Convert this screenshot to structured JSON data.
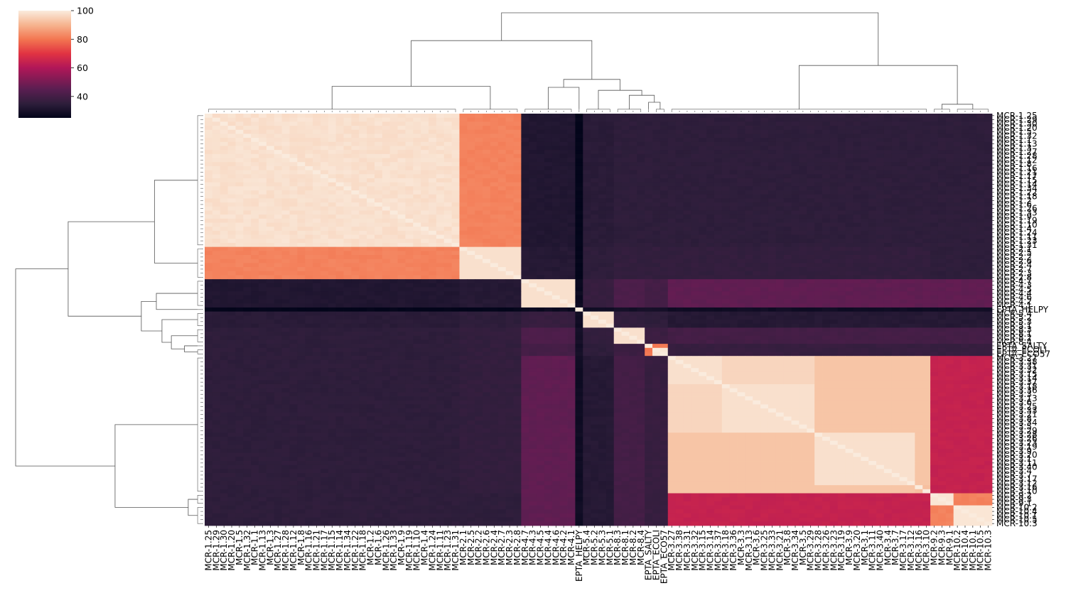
{
  "chart_data": {
    "type": "heatmap",
    "title": "",
    "xlabel": "",
    "ylabel": "",
    "colormap": "rocket",
    "colorbar": {
      "range": [
        25,
        100
      ],
      "ticks": [
        100,
        80,
        60,
        40
      ]
    },
    "labels": [
      "MCR-1.25",
      "MCR-1.29",
      "MCR-1.30",
      "MCR-1.20",
      "MCR-1.5",
      "MCR-1.32",
      "MCR-1.1",
      "MCR-1.13",
      "MCR-1.3",
      "MCR-1.27",
      "MCR-1.28",
      "MCR-1.12",
      "MCR-1.8",
      "MCR-1.16",
      "MCR-1.21",
      "MCR-1.17",
      "MCR-1.15",
      "MCR-1.14",
      "MCR-1.34",
      "MCR-1.22",
      "MCR-1.18",
      "MCR-1.2",
      "MCR-1.6",
      "MCR-1.26",
      "MCR-1.33",
      "MCR-1.9",
      "MCR-1.19",
      "MCR-1.10",
      "MCR-1.4",
      "MCR-1.24",
      "MCR-1.11",
      "MCR-1.23",
      "MCR-1.31",
      "MCR-2.1",
      "MCR-2.5",
      "MCR-2.2",
      "MCR-2.6",
      "MCR-2.4",
      "MCR-2.7",
      "MCR-2.3",
      "MCR-2.8",
      "MCR-4.7",
      "MCR-4.3",
      "MCR-4.5",
      "MCR-4.4",
      "MCR-4.6",
      "MCR-4.2",
      "MCR-4.1",
      "EPTA_HELPY",
      "MCR-5.4",
      "MCR-5.2",
      "MCR-5.3",
      "MCR-5.1",
      "MCR-8.3",
      "MCR-8.1",
      "MCR-8.2",
      "MCR-8.4",
      "EPTA_SALTY",
      "EPTA_ECOLI",
      "EPTA_ECO57",
      "MCR-3.27",
      "MCR-3.38",
      "MCR-3.31",
      "MCR-3.32",
      "MCR-3.15",
      "MCR-3.14",
      "MCR-3.37",
      "MCR-3.18",
      "MCR-3.36",
      "MCR-3.3",
      "MCR-3.13",
      "MCR-3.6",
      "MCR-3.25",
      "MCR-3.33",
      "MCR-3.21",
      "MCR-3.8",
      "MCR-3.34",
      "MCR-3.5",
      "MCR-3.29",
      "MCR-3.28",
      "MCR-3.26",
      "MCR-3.23",
      "MCR-3.19",
      "MCR-3.9",
      "MCR-3.20",
      "MCR-3.1",
      "MCR-3.11",
      "MCR-3.40",
      "MCR-3.4",
      "MCR-3.7",
      "MCR-3.17",
      "MCR-3.12",
      "MCR-3.16",
      "MCR-3.10",
      "MCR-9.2",
      "MCR-9.3",
      "MCR-9.1",
      "MCR-10.2",
      "MCR-10.4",
      "MCR-10.1",
      "MCR-10.5",
      "MCR-10.3"
    ],
    "clusters": [
      {
        "name": "MCR-1",
        "start": 0,
        "count": 33
      },
      {
        "name": "MCR-2",
        "start": 33,
        "count": 8
      },
      {
        "name": "MCR-4",
        "start": 41,
        "count": 7
      },
      {
        "name": "EPTA_HELPY",
        "start": 48,
        "count": 1
      },
      {
        "name": "MCR-5",
        "start": 49,
        "count": 4
      },
      {
        "name": "MCR-8",
        "start": 53,
        "count": 4
      },
      {
        "name": "EPTA_SALTY",
        "start": 57,
        "count": 1
      },
      {
        "name": "EPTA_ECOLI/ECO57",
        "start": 58,
        "count": 2
      },
      {
        "name": "MCR-3",
        "start": 60,
        "count": 34
      },
      {
        "name": "MCR-9",
        "start": 94,
        "count": 3
      },
      {
        "name": "MCR-10",
        "start": 97,
        "count": 5
      }
    ],
    "similarity_blocks": [
      [
        99,
        82,
        32,
        25,
        34,
        35,
        35,
        35,
        35,
        35,
        35
      ],
      [
        82,
        98,
        33,
        25,
        35,
        36,
        36,
        36,
        36,
        35,
        35
      ],
      [
        32,
        33,
        98,
        27,
        37,
        42,
        40,
        40,
        46,
        46,
        46
      ],
      [
        25,
        25,
        27,
        100,
        28,
        29,
        29,
        29,
        28,
        28,
        28
      ],
      [
        34,
        35,
        37,
        28,
        98,
        36,
        35,
        35,
        33,
        33,
        33
      ],
      [
        35,
        36,
        42,
        29,
        36,
        98,
        38,
        38,
        40,
        40,
        40
      ],
      [
        35,
        36,
        40,
        29,
        35,
        38,
        100,
        80,
        37,
        37,
        37
      ],
      [
        35,
        36,
        40,
        29,
        35,
        38,
        80,
        99,
        37,
        37,
        37
      ],
      [
        35,
        36,
        46,
        28,
        33,
        40,
        37,
        37,
        95,
        64,
        64
      ],
      [
        35,
        35,
        46,
        28,
        33,
        40,
        37,
        37,
        64,
        99,
        82
      ],
      [
        35,
        35,
        46,
        28,
        33,
        40,
        37,
        37,
        64,
        82,
        99
      ]
    ]
  }
}
